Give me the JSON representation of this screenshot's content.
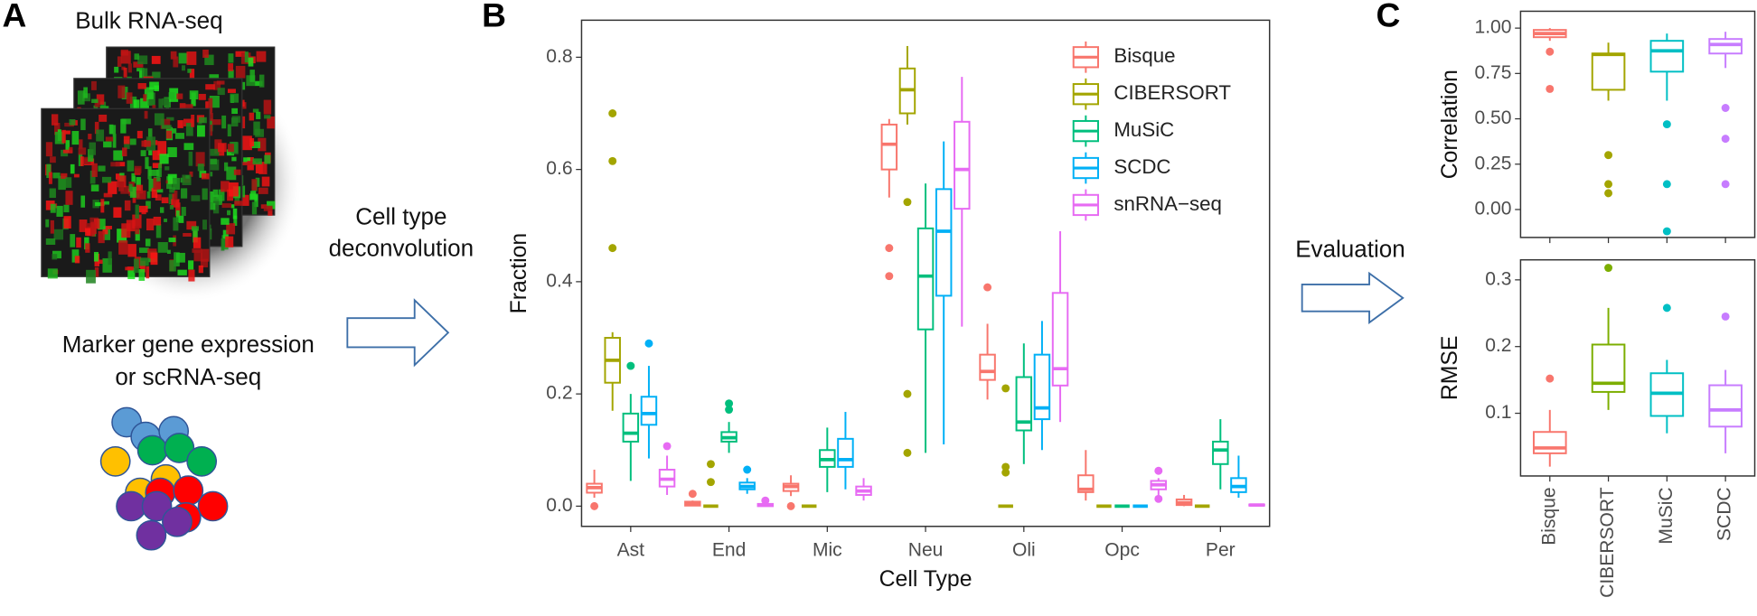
{
  "panel_labels": [
    "A",
    "B",
    "C"
  ],
  "panel_a": {
    "bulk_label": "Bulk RNA-seq",
    "arrow_label": [
      "Cell type",
      "deconvolution"
    ],
    "reference_label": [
      "Marker gene expression",
      "or scRNA-seq"
    ]
  },
  "evaluation_label": "Evaluation",
  "chart_data": [
    {
      "type": "box",
      "x_label": "Cell Type",
      "y_label": "Fraction",
      "legend": "top-right",
      "categories": [
        "Ast",
        "End",
        "Mic",
        "Neu",
        "Oli",
        "Opc",
        "Per"
      ],
      "ylim": [
        -0.036,
        0.866
      ],
      "yticks": [
        {
          "value": 0,
          "label": "0.0"
        },
        0.2,
        0.4,
        0.6,
        0.8
      ],
      "series": [
        {
          "name": "Bisque",
          "color": "#F8766D",
          "min": [
            0.015,
            0,
            0.018,
            0.55,
            0.19,
            0.01,
            0
          ],
          "q1": [
            0.024,
            0.001,
            0.027,
            0.6,
            0.225,
            0.025,
            0.002
          ],
          "median": [
            0.033,
            0.004,
            0.035,
            0.645,
            0.24,
            0.03,
            0.006
          ],
          "q3": [
            0.04,
            0.008,
            0.04,
            0.68,
            0.27,
            0.055,
            0.012
          ],
          "max": [
            0.065,
            0.01,
            0.055,
            0.69,
            0.325,
            0.1,
            0.02
          ],
          "outliers": [
            [
              0
            ],
            [
              0.022
            ],
            [
              0
            ],
            [
              0.41,
              0.46
            ],
            [
              0.39
            ],
            [],
            []
          ]
        },
        {
          "name": "CIBERSORT",
          "color": "#A3A500",
          "min": [
            0.17,
            0,
            0,
            0.68,
            0,
            0,
            0
          ],
          "q1": [
            0.22,
            0,
            0,
            0.7,
            0,
            0,
            0
          ],
          "median": [
            0.26,
            0,
            0,
            0.742,
            0,
            0,
            0
          ],
          "q3": [
            0.3,
            0,
            0,
            0.78,
            0,
            0,
            0
          ],
          "max": [
            0.31,
            0,
            0,
            0.82,
            0,
            0,
            0
          ],
          "outliers": [
            [
              0.46,
              0.615,
              0.7
            ],
            [
              0.043,
              0.075
            ],
            [],
            [
              0.095,
              0.2,
              0.542
            ],
            [
              0.06,
              0.07,
              0.21
            ],
            [],
            []
          ]
        },
        {
          "name": "MuSiC",
          "color": "#00BF7D",
          "min": [
            0.045,
            0.095,
            0.025,
            0.095,
            0.075,
            0,
            0.03
          ],
          "q1": [
            0.115,
            0.115,
            0.07,
            0.315,
            0.135,
            0,
            0.075
          ],
          "median": [
            0.13,
            0.122,
            0.083,
            0.41,
            0.15,
            0,
            0.1
          ],
          "q3": [
            0.165,
            0.132,
            0.1,
            0.495,
            0.23,
            0,
            0.115
          ],
          "max": [
            0.2,
            0.15,
            0.14,
            0.575,
            0.29,
            0,
            0.155
          ],
          "outliers": [
            [
              0.25
            ],
            [
              0.172,
              0.183
            ],
            [],
            [],
            [],
            [],
            []
          ]
        },
        {
          "name": "SCDC",
          "color": "#00B0F6",
          "min": [
            0.085,
            0.022,
            0.03,
            0.11,
            0.1,
            0,
            0.015
          ],
          "q1": [
            0.145,
            0.03,
            0.07,
            0.375,
            0.155,
            0,
            0.025
          ],
          "median": [
            0.165,
            0.035,
            0.083,
            0.49,
            0.175,
            0,
            0.035
          ],
          "q3": [
            0.195,
            0.042,
            0.12,
            0.565,
            0.27,
            0,
            0.05
          ],
          "max": [
            0.25,
            0.05,
            0.168,
            0.65,
            0.33,
            0,
            0.09
          ],
          "outliers": [
            [
              0.29
            ],
            [
              0.065
            ],
            [],
            [],
            [],
            [],
            []
          ]
        },
        {
          "name": "snRNA−seq",
          "color": "#E76BF3",
          "min": [
            0.02,
            0,
            0.01,
            0.32,
            0.15,
            0.02,
            0
          ],
          "q1": [
            0.035,
            0,
            0.02,
            0.53,
            0.215,
            0.03,
            0.001
          ],
          "median": [
            0.048,
            0.002,
            0.027,
            0.6,
            0.245,
            0.038,
            0.002
          ],
          "q3": [
            0.065,
            0.004,
            0.035,
            0.685,
            0.38,
            0.045,
            0.003
          ],
          "max": [
            0.09,
            0.006,
            0.05,
            0.765,
            0.49,
            0.05,
            0.003
          ],
          "outliers": [
            [
              0.107
            ],
            [
              0.01
            ],
            [],
            [],
            [],
            [
              0.013,
              0.063
            ],
            []
          ]
        }
      ]
    },
    {
      "type": "box",
      "y_label": "Correlation",
      "ylim": [
        -0.154,
        1.093
      ],
      "yticks": [
        {
          "value": 0,
          "label": "0.00"
        },
        0.25,
        {
          "value": 0.5,
          "label": "0.50"
        },
        0.75,
        {
          "value": 1,
          "label": "1.00"
        }
      ],
      "colors": [
        "#F8766D",
        "#A3A500",
        "#00BFC4",
        "#C77CFF"
      ],
      "boxes": {
        "min": [
          0.93,
          0.6,
          0.6,
          0.78
        ],
        "q1": [
          0.95,
          0.66,
          0.76,
          0.86
        ],
        "median": [
          0.97,
          0.855,
          0.875,
          0.91
        ],
        "q3": [
          0.99,
          0.86,
          0.93,
          0.94
        ],
        "max": [
          1.0,
          0.92,
          0.97,
          0.98
        ],
        "outliers": [
          [
            0.87,
            0.665
          ],
          [
            0.3,
            0.14,
            0.09
          ],
          [
            0.47,
            0.14,
            -0.12
          ],
          [
            0.56,
            0.39,
            0.14
          ]
        ]
      }
    },
    {
      "type": "box",
      "y_label": "RMSE",
      "categories": [
        "Bisque",
        "CIBERSORT",
        "MuSiC",
        "SCDC"
      ],
      "ylim": [
        0.006,
        0.33
      ],
      "yticks": [
        0.1,
        0.2,
        0.3
      ],
      "colors": [
        "#F8766D",
        "#7CAE00",
        "#00BFC4",
        "#C77CFF"
      ],
      "boxes": {
        "min": [
          0.02,
          0.105,
          0.07,
          0.04
        ],
        "q1": [
          0.04,
          0.132,
          0.096,
          0.08
        ],
        "median": [
          0.048,
          0.145,
          0.13,
          0.105
        ],
        "q3": [
          0.072,
          0.203,
          0.16,
          0.142
        ],
        "max": [
          0.105,
          0.258,
          0.18,
          0.165
        ],
        "outliers": [
          [
            0.152
          ],
          [
            0.318
          ],
          [
            0.258
          ],
          [
            0.245
          ]
        ]
      }
    }
  ]
}
